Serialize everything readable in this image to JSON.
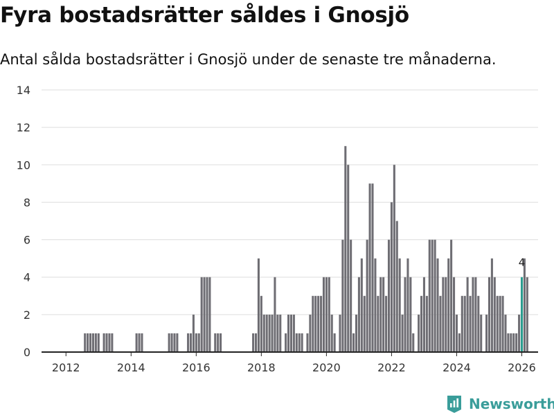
{
  "title": "Fyra bostadsrätter såldes i Gnosjö",
  "subtitle": "Antal sålda bostadsrätter i Gnosjö under de senaste tre månaderna.",
  "brand": {
    "name": "Newsworthy",
    "icon": "newsworthy-logo-icon"
  },
  "colors": {
    "bar": "#6e6d73",
    "highlight": "#2a9d8f",
    "grid": "#dddddd",
    "axis": "#222222",
    "brand": "#3a9d9a"
  },
  "chart_data": {
    "type": "bar",
    "title": "Fyra bostadsrätter såldes i Gnosjö",
    "subtitle": "Antal sålda bostadsrätter i Gnosjö under de senaste tre månaderna.",
    "xlabel": "",
    "ylabel": "",
    "x_unit": "month",
    "x_start": 2011.75,
    "xlim": [
      2011.25,
      2026.5
    ],
    "ylim": [
      0,
      14
    ],
    "yticks": [
      0,
      2,
      4,
      6,
      8,
      10,
      12,
      14
    ],
    "xticks": [
      2012,
      2014,
      2016,
      2018,
      2020,
      2022,
      2024,
      2026
    ],
    "grid": true,
    "highlight_index": 171,
    "highlight_label": "4",
    "values": [
      0,
      0,
      0,
      0,
      0,
      0,
      0,
      0,
      0,
      0,
      1,
      1,
      1,
      1,
      1,
      1,
      0,
      1,
      1,
      1,
      1,
      0,
      0,
      0,
      0,
      0,
      0,
      0,
      0,
      1,
      1,
      1,
      0,
      0,
      0,
      0,
      0,
      0,
      0,
      0,
      0,
      1,
      1,
      1,
      1,
      0,
      0,
      0,
      1,
      1,
      2,
      1,
      1,
      4,
      4,
      4,
      4,
      0,
      1,
      1,
      1,
      0,
      0,
      0,
      0,
      0,
      0,
      0,
      0,
      0,
      0,
      0,
      1,
      1,
      5,
      3,
      2,
      2,
      2,
      2,
      4,
      2,
      2,
      0,
      1,
      2,
      2,
      2,
      1,
      1,
      1,
      0,
      1,
      2,
      3,
      3,
      3,
      3,
      4,
      4,
      4,
      2,
      1,
      0,
      2,
      6,
      11,
      10,
      6,
      1,
      2,
      4,
      5,
      3,
      6,
      9,
      9,
      5,
      3,
      4,
      4,
      3,
      6,
      8,
      10,
      7,
      5,
      2,
      4,
      5,
      4,
      1,
      0,
      2,
      3,
      4,
      3,
      6,
      6,
      6,
      5,
      3,
      4,
      4,
      5,
      6,
      4,
      2,
      1,
      3,
      3,
      4,
      3,
      4,
      4,
      3,
      2,
      0,
      2,
      4,
      5,
      4,
      3,
      3,
      3,
      2,
      1,
      1,
      1,
      1,
      2,
      4,
      5,
      4
    ]
  }
}
